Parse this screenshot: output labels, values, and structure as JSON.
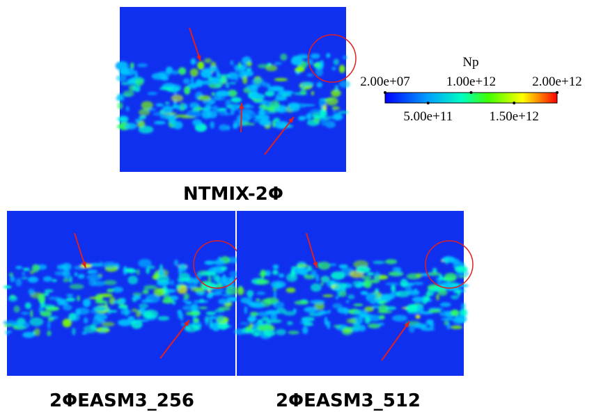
{
  "panels": [
    {
      "label": "NTMIX-2Φ"
    },
    {
      "label": "2ΦEASM3_256"
    },
    {
      "label": "2ΦEASM3_512"
    }
  ],
  "colorbar": {
    "title": "Np",
    "range": [
      20000000,
      2000000000000
    ],
    "ticks": [
      {
        "value": 20000000,
        "label": "2.00e+07"
      },
      {
        "value": 500000000000,
        "label": "5.00e+11"
      },
      {
        "value": 1000000000000,
        "label": "1.00e+12"
      },
      {
        "value": 1500000000000,
        "label": "1.50e+12"
      },
      {
        "value": 2000000000000,
        "label": "2.00e+12"
      }
    ]
  }
}
